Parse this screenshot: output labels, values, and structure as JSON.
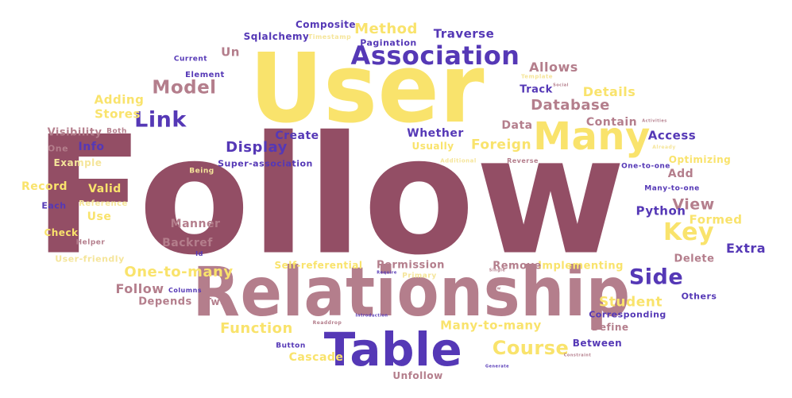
{
  "colors": {
    "maroon": "#934E65",
    "mauve": "#B47E8C",
    "yellow": "#F9E36C",
    "lightyellow": "#F5E59A",
    "purple": "#5538B6"
  },
  "words": [
    {
      "text": "Follow",
      "color": "maroon"
    },
    {
      "text": "User",
      "color": "yellow"
    },
    {
      "text": "Relationship",
      "color": "mauve"
    },
    {
      "text": "Table",
      "color": "purple"
    },
    {
      "text": "Many",
      "color": "yellow"
    },
    {
      "text": "Association",
      "color": "purple"
    },
    {
      "text": "Link",
      "color": "purple"
    },
    {
      "text": "Model",
      "color": "mauve"
    },
    {
      "text": "Key",
      "color": "yellow"
    },
    {
      "text": "Side",
      "color": "purple"
    },
    {
      "text": "Course",
      "color": "yellow"
    },
    {
      "text": "Method",
      "color": "yellow"
    },
    {
      "text": "Display",
      "color": "purple"
    },
    {
      "text": "Foreign",
      "color": "yellow"
    },
    {
      "text": "Database",
      "color": "mauve"
    },
    {
      "text": "View",
      "color": "mauve"
    },
    {
      "text": "One-to-many",
      "color": "yellow"
    },
    {
      "text": "Student",
      "color": "yellow"
    },
    {
      "text": "Function",
      "color": "yellow"
    },
    {
      "text": "Traverse",
      "color": "purple"
    },
    {
      "text": "Composite",
      "color": "purple"
    },
    {
      "text": "Sqlalchemy",
      "color": "purple"
    },
    {
      "text": "Pagination",
      "color": "purple"
    },
    {
      "text": "Un",
      "color": "mauve"
    },
    {
      "text": "Allows",
      "color": "mauve"
    },
    {
      "text": "Details",
      "color": "yellow"
    },
    {
      "text": "Track",
      "color": "purple"
    },
    {
      "text": "Adding",
      "color": "yellow"
    },
    {
      "text": "Stores",
      "color": "yellow"
    },
    {
      "text": "Element",
      "color": "purple"
    },
    {
      "text": "Current",
      "color": "purple"
    },
    {
      "text": "Contain",
      "color": "mauve"
    },
    {
      "text": "Access",
      "color": "purple"
    },
    {
      "text": "Data",
      "color": "mauve"
    },
    {
      "text": "Create",
      "color": "purple"
    },
    {
      "text": "Whether",
      "color": "purple"
    },
    {
      "text": "Usually",
      "color": "yellow"
    },
    {
      "text": "Info",
      "color": "purple"
    },
    {
      "text": "Visibility",
      "color": "mauve"
    },
    {
      "text": "One",
      "color": "mauve"
    },
    {
      "text": "Both",
      "color": "mauve"
    },
    {
      "text": "Example",
      "color": "lightyellow"
    },
    {
      "text": "Record",
      "color": "yellow"
    },
    {
      "text": "Valid",
      "color": "yellow"
    },
    {
      "text": "Each",
      "color": "purple"
    },
    {
      "text": "Reference",
      "color": "lightyellow"
    },
    {
      "text": "Use",
      "color": "yellow"
    },
    {
      "text": "Check",
      "color": "yellow"
    },
    {
      "text": "Helper",
      "color": "mauve"
    },
    {
      "text": "User-friendly",
      "color": "lightyellow"
    },
    {
      "text": "Manner",
      "color": "mauve"
    },
    {
      "text": "Backref",
      "color": "mauve"
    },
    {
      "text": "Id",
      "color": "purple"
    },
    {
      "text": "Super-association",
      "color": "purple"
    },
    {
      "text": "Being",
      "color": "lightyellow"
    },
    {
      "text": "Optimizing",
      "color": "yellow"
    },
    {
      "text": "Add",
      "color": "mauve"
    },
    {
      "text": "One-to-one",
      "color": "purple"
    },
    {
      "text": "Many-to-one",
      "color": "purple"
    },
    {
      "text": "Python",
      "color": "purple"
    },
    {
      "text": "Formed",
      "color": "yellow"
    },
    {
      "text": "Extra",
      "color": "purple"
    },
    {
      "text": "Delete",
      "color": "mauve"
    },
    {
      "text": "Others",
      "color": "purple"
    },
    {
      "text": "Implementing",
      "color": "yellow"
    },
    {
      "text": "Remove",
      "color": "mauve"
    },
    {
      "text": "Permission",
      "color": "mauve"
    },
    {
      "text": "Primary",
      "color": "lightyellow"
    },
    {
      "text": "Self-referential",
      "color": "yellow"
    },
    {
      "text": "Follow",
      "color": "mauve"
    },
    {
      "text": "Depends",
      "color": "mauve"
    },
    {
      "text": "Columns",
      "color": "purple"
    },
    {
      "text": "Two",
      "color": "mauve"
    },
    {
      "text": "Many-to-many",
      "color": "yellow"
    },
    {
      "text": "Corresponding",
      "color": "purple"
    },
    {
      "text": "Define",
      "color": "mauve"
    },
    {
      "text": "Between",
      "color": "purple"
    },
    {
      "text": "Cascade",
      "color": "yellow"
    },
    {
      "text": "Button",
      "color": "purple"
    },
    {
      "text": "Unfollow",
      "color": "mauve"
    },
    {
      "text": "Timestamp",
      "color": "lightyellow"
    },
    {
      "text": "Template",
      "color": "lightyellow"
    },
    {
      "text": "Social",
      "color": "mauve"
    },
    {
      "text": "Additional",
      "color": "lightyellow"
    },
    {
      "text": "Reverse",
      "color": "mauve"
    },
    {
      "text": "Already",
      "color": "lightyellow"
    },
    {
      "text": "Activities",
      "color": "mauve"
    },
    {
      "text": "Introduction",
      "color": "purple"
    },
    {
      "text": "Single",
      "color": "mauve"
    },
    {
      "text": "Show",
      "color": "mauve"
    },
    {
      "text": "Require",
      "color": "purple"
    },
    {
      "text": "Readdrop",
      "color": "mauve"
    },
    {
      "text": "Constraint",
      "color": "mauve"
    },
    {
      "text": "Generate",
      "color": "purple"
    }
  ]
}
